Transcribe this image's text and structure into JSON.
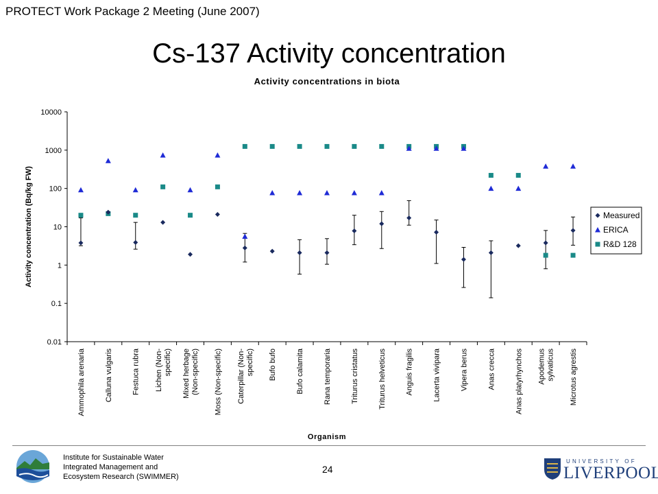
{
  "header": {
    "meeting": "PROTECT Work Package 2 Meeting (June 2007)"
  },
  "slide_title": "Cs-137 Activity concentration",
  "footer": {
    "institute_lines": [
      "Institute for Sustainable Water",
      "Integrated Management and",
      "Ecosystem Research (SWIMMER)"
    ],
    "page_number": "24",
    "university_top": "UNIVERSITY OF",
    "university_name": "LIVERPOOL"
  },
  "chart_data": {
    "type": "scatter",
    "title": "Activity concentrations in biota",
    "xlabel": "Organism",
    "ylabel": "Activity concentration (Bq/kg FW)",
    "yscale": "log",
    "ylim": [
      0.01,
      10000
    ],
    "yticks": [
      "0.01",
      "0.1",
      "1",
      "10",
      "100",
      "1000",
      "10000"
    ],
    "legend_position": "right",
    "categories": [
      [
        "Ammophila arenaria"
      ],
      [
        "Calluna vulgaris"
      ],
      [
        "Festuca rubra"
      ],
      [
        "Lichen (Non-",
        "specific)"
      ],
      [
        "Mixed herbage",
        "(Non-specific)"
      ],
      [
        "Moss (Non-specific)"
      ],
      [
        "Caterpillar (Non-",
        "specific)"
      ],
      [
        "Bufo bufo"
      ],
      [
        "Bufo calamita"
      ],
      [
        "Rana temporaria"
      ],
      [
        "Triturus cristatus"
      ],
      [
        "Triturus helveticus"
      ],
      [
        "Anguis fragilis"
      ],
      [
        "Lacerta vivipara"
      ],
      [
        "Vipera berus"
      ],
      [
        "Anas crecca"
      ],
      [
        "Anas platyrhynchos"
      ],
      [
        "Apodemus",
        "sylvaticus"
      ],
      [
        "Microtus agrestis"
      ]
    ],
    "series": [
      {
        "name": "Measured",
        "marker": "diamond",
        "color": "#1a2a5e",
        "values": [
          3.8,
          24,
          3.9,
          13,
          1.9,
          21,
          2.8,
          2.3,
          2.1,
          2.1,
          7.8,
          12,
          17,
          7.2,
          1.4,
          2.1,
          3.2,
          3.8,
          8
        ],
        "error_low": [
          3.2,
          null,
          2.6,
          null,
          null,
          null,
          1.2,
          null,
          0.58,
          1.05,
          3.4,
          2.7,
          11,
          1.1,
          0.26,
          0.14,
          null,
          0.8,
          3.3
        ],
        "error_high": [
          17,
          null,
          13,
          null,
          null,
          null,
          6.7,
          null,
          4.6,
          4.9,
          20,
          25,
          48,
          15,
          2.9,
          4.3,
          null,
          8,
          18
        ]
      },
      {
        "name": "ERICA",
        "marker": "triangle",
        "color": "#1f2bd6",
        "values": [
          92,
          530,
          92,
          740,
          92,
          740,
          5.6,
          77,
          77,
          77,
          77,
          77,
          1110,
          1110,
          1110,
          100,
          100,
          380,
          380
        ]
      },
      {
        "name": "R&D 128",
        "marker": "square",
        "color": "#1a8a88",
        "values": [
          20,
          22,
          20,
          110,
          20,
          110,
          1250,
          1250,
          1250,
          1250,
          1250,
          1250,
          1250,
          1250,
          1250,
          220,
          220,
          1.8,
          1.8
        ]
      }
    ]
  }
}
